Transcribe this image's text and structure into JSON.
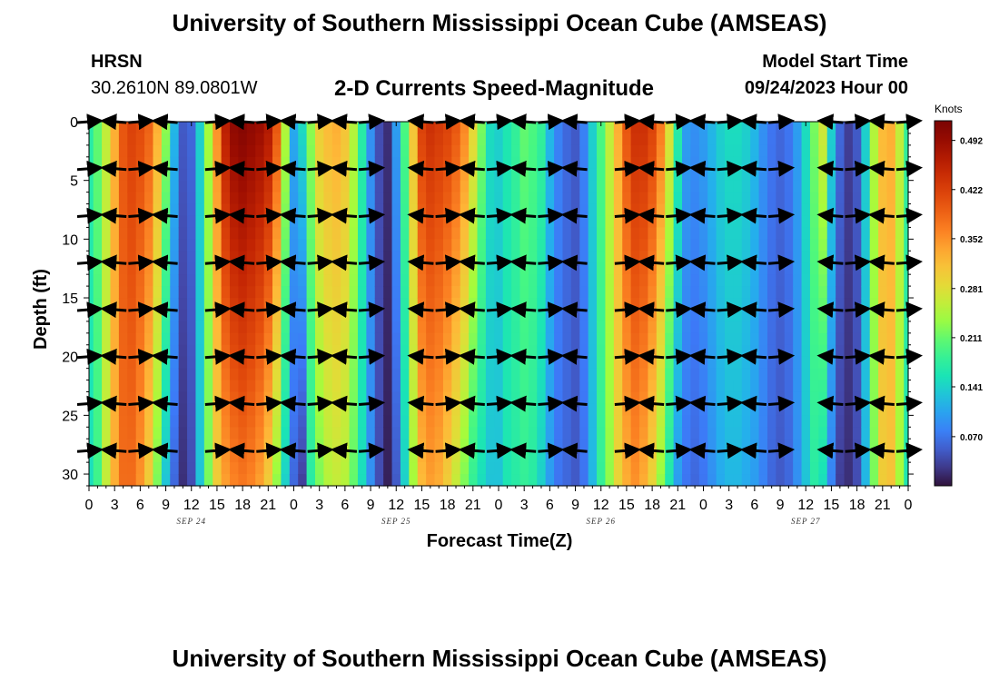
{
  "header": {
    "title_top": "University of Southern Mississippi Ocean Cube (AMSEAS)",
    "station": "HRSN",
    "coords": "30.2610N  89.0801W",
    "subtitle": "2-D Currents Speed-Magnitude",
    "model_start_label": "Model Start Time",
    "model_start_value": "09/24/2023 Hour 00",
    "title_bottom": "University of Southern Mississippi Ocean Cube (AMSEAS)"
  },
  "chart_data": {
    "type": "heatmap",
    "title": "2-D Currents Speed-Magnitude",
    "xlabel": "Forecast Time(Z)",
    "ylabel": "Depth (ft)",
    "x_range_hours": [
      0,
      96
    ],
    "y_range_ft": [
      0,
      31
    ],
    "y_inverted": true,
    "x_tick_labels": [
      "0",
      "3",
      "6",
      "9",
      "12",
      "15",
      "18",
      "21",
      "0",
      "3",
      "6",
      "9",
      "12",
      "15",
      "18",
      "21",
      "0",
      "3",
      "6",
      "9",
      "12",
      "15",
      "18",
      "21",
      "0",
      "3",
      "6",
      "9",
      "12",
      "15",
      "18",
      "21",
      "0"
    ],
    "y_ticks": [
      0,
      5,
      10,
      15,
      20,
      25,
      30
    ],
    "date_labels": [
      {
        "label": "SEP 24",
        "hour": 12
      },
      {
        "label": "SEP 25",
        "hour": 36
      },
      {
        "label": "SEP 26",
        "hour": 60
      },
      {
        "label": "SEP 27",
        "hour": 84
      }
    ],
    "colorbar": {
      "unit": "Knots",
      "min": 0.0,
      "max": 0.52,
      "tick_labels": [
        "0.492",
        "0.422",
        "0.352",
        "0.281",
        "0.211",
        "0.141",
        "0.070"
      ]
    },
    "speed_profile": {
      "hours": [
        0,
        1,
        2,
        3,
        4,
        5,
        6,
        7,
        8,
        9,
        10,
        11,
        12,
        13,
        14,
        15,
        16,
        17,
        18,
        19,
        20,
        21,
        22,
        23,
        24,
        25,
        26,
        27,
        28,
        29,
        30,
        31,
        32,
        33,
        34,
        35,
        36,
        37,
        38,
        39,
        40,
        41,
        42,
        43,
        44,
        45,
        46,
        47,
        48,
        49,
        50,
        51,
        52,
        53,
        54,
        55,
        56,
        57,
        58,
        59,
        60,
        61,
        62,
        63,
        64,
        65,
        66,
        67,
        68,
        69,
        70,
        71,
        72,
        73,
        74,
        75,
        76,
        77,
        78,
        79,
        80,
        81,
        82,
        83,
        84,
        85,
        86,
        87,
        88,
        89,
        90,
        91,
        92,
        93,
        94,
        95,
        96
      ],
      "surface_knots": [
        0.17,
        0.21,
        0.26,
        0.33,
        0.4,
        0.42,
        0.41,
        0.39,
        0.33,
        0.23,
        0.12,
        0.05,
        0.06,
        0.14,
        0.24,
        0.35,
        0.46,
        0.5,
        0.51,
        0.5,
        0.49,
        0.47,
        0.4,
        0.25,
        0.11,
        0.15,
        0.23,
        0.3,
        0.32,
        0.33,
        0.31,
        0.25,
        0.17,
        0.09,
        0.04,
        0.02,
        0.1,
        0.2,
        0.31,
        0.42,
        0.44,
        0.43,
        0.42,
        0.4,
        0.36,
        0.29,
        0.22,
        0.15,
        0.14,
        0.16,
        0.18,
        0.21,
        0.2,
        0.18,
        0.12,
        0.08,
        0.06,
        0.05,
        0.08,
        0.14,
        0.2,
        0.26,
        0.33,
        0.4,
        0.44,
        0.44,
        0.42,
        0.37,
        0.28,
        0.17,
        0.1,
        0.09,
        0.1,
        0.12,
        0.14,
        0.15,
        0.15,
        0.14,
        0.12,
        0.09,
        0.07,
        0.06,
        0.07,
        0.1,
        0.15,
        0.22,
        0.27,
        0.14,
        0.06,
        0.03,
        0.05,
        0.14,
        0.25,
        0.32,
        0.33,
        0.26,
        0.18
      ],
      "bottom_knots": [
        0.15,
        0.19,
        0.26,
        0.33,
        0.38,
        0.38,
        0.35,
        0.3,
        0.22,
        0.13,
        0.06,
        0.02,
        0.04,
        0.13,
        0.22,
        0.3,
        0.34,
        0.36,
        0.37,
        0.36,
        0.34,
        0.3,
        0.23,
        0.14,
        0.06,
        0.03,
        0.17,
        0.22,
        0.25,
        0.26,
        0.25,
        0.21,
        0.15,
        0.09,
        0.04,
        0.01,
        0.05,
        0.14,
        0.24,
        0.32,
        0.34,
        0.33,
        0.3,
        0.26,
        0.22,
        0.18,
        0.15,
        0.13,
        0.13,
        0.16,
        0.17,
        0.18,
        0.17,
        0.14,
        0.1,
        0.07,
        0.06,
        0.05,
        0.07,
        0.12,
        0.18,
        0.23,
        0.29,
        0.33,
        0.35,
        0.33,
        0.29,
        0.23,
        0.16,
        0.1,
        0.07,
        0.06,
        0.07,
        0.09,
        0.11,
        0.12,
        0.12,
        0.11,
        0.1,
        0.08,
        0.06,
        0.05,
        0.06,
        0.09,
        0.13,
        0.17,
        0.15,
        0.08,
        0.03,
        0.02,
        0.04,
        0.12,
        0.22,
        0.3,
        0.31,
        0.24,
        0.16
      ]
    },
    "vector_depths_ft": [
      0,
      4,
      8,
      12,
      16,
      20,
      24,
      28
    ],
    "vector_hours": [
      0,
      3,
      6,
      9,
      15,
      18,
      21,
      24,
      27,
      30,
      33,
      39,
      42,
      45,
      48,
      51,
      54,
      57,
      63,
      66,
      69,
      72,
      75,
      78,
      81,
      87,
      90,
      93,
      96
    ]
  }
}
